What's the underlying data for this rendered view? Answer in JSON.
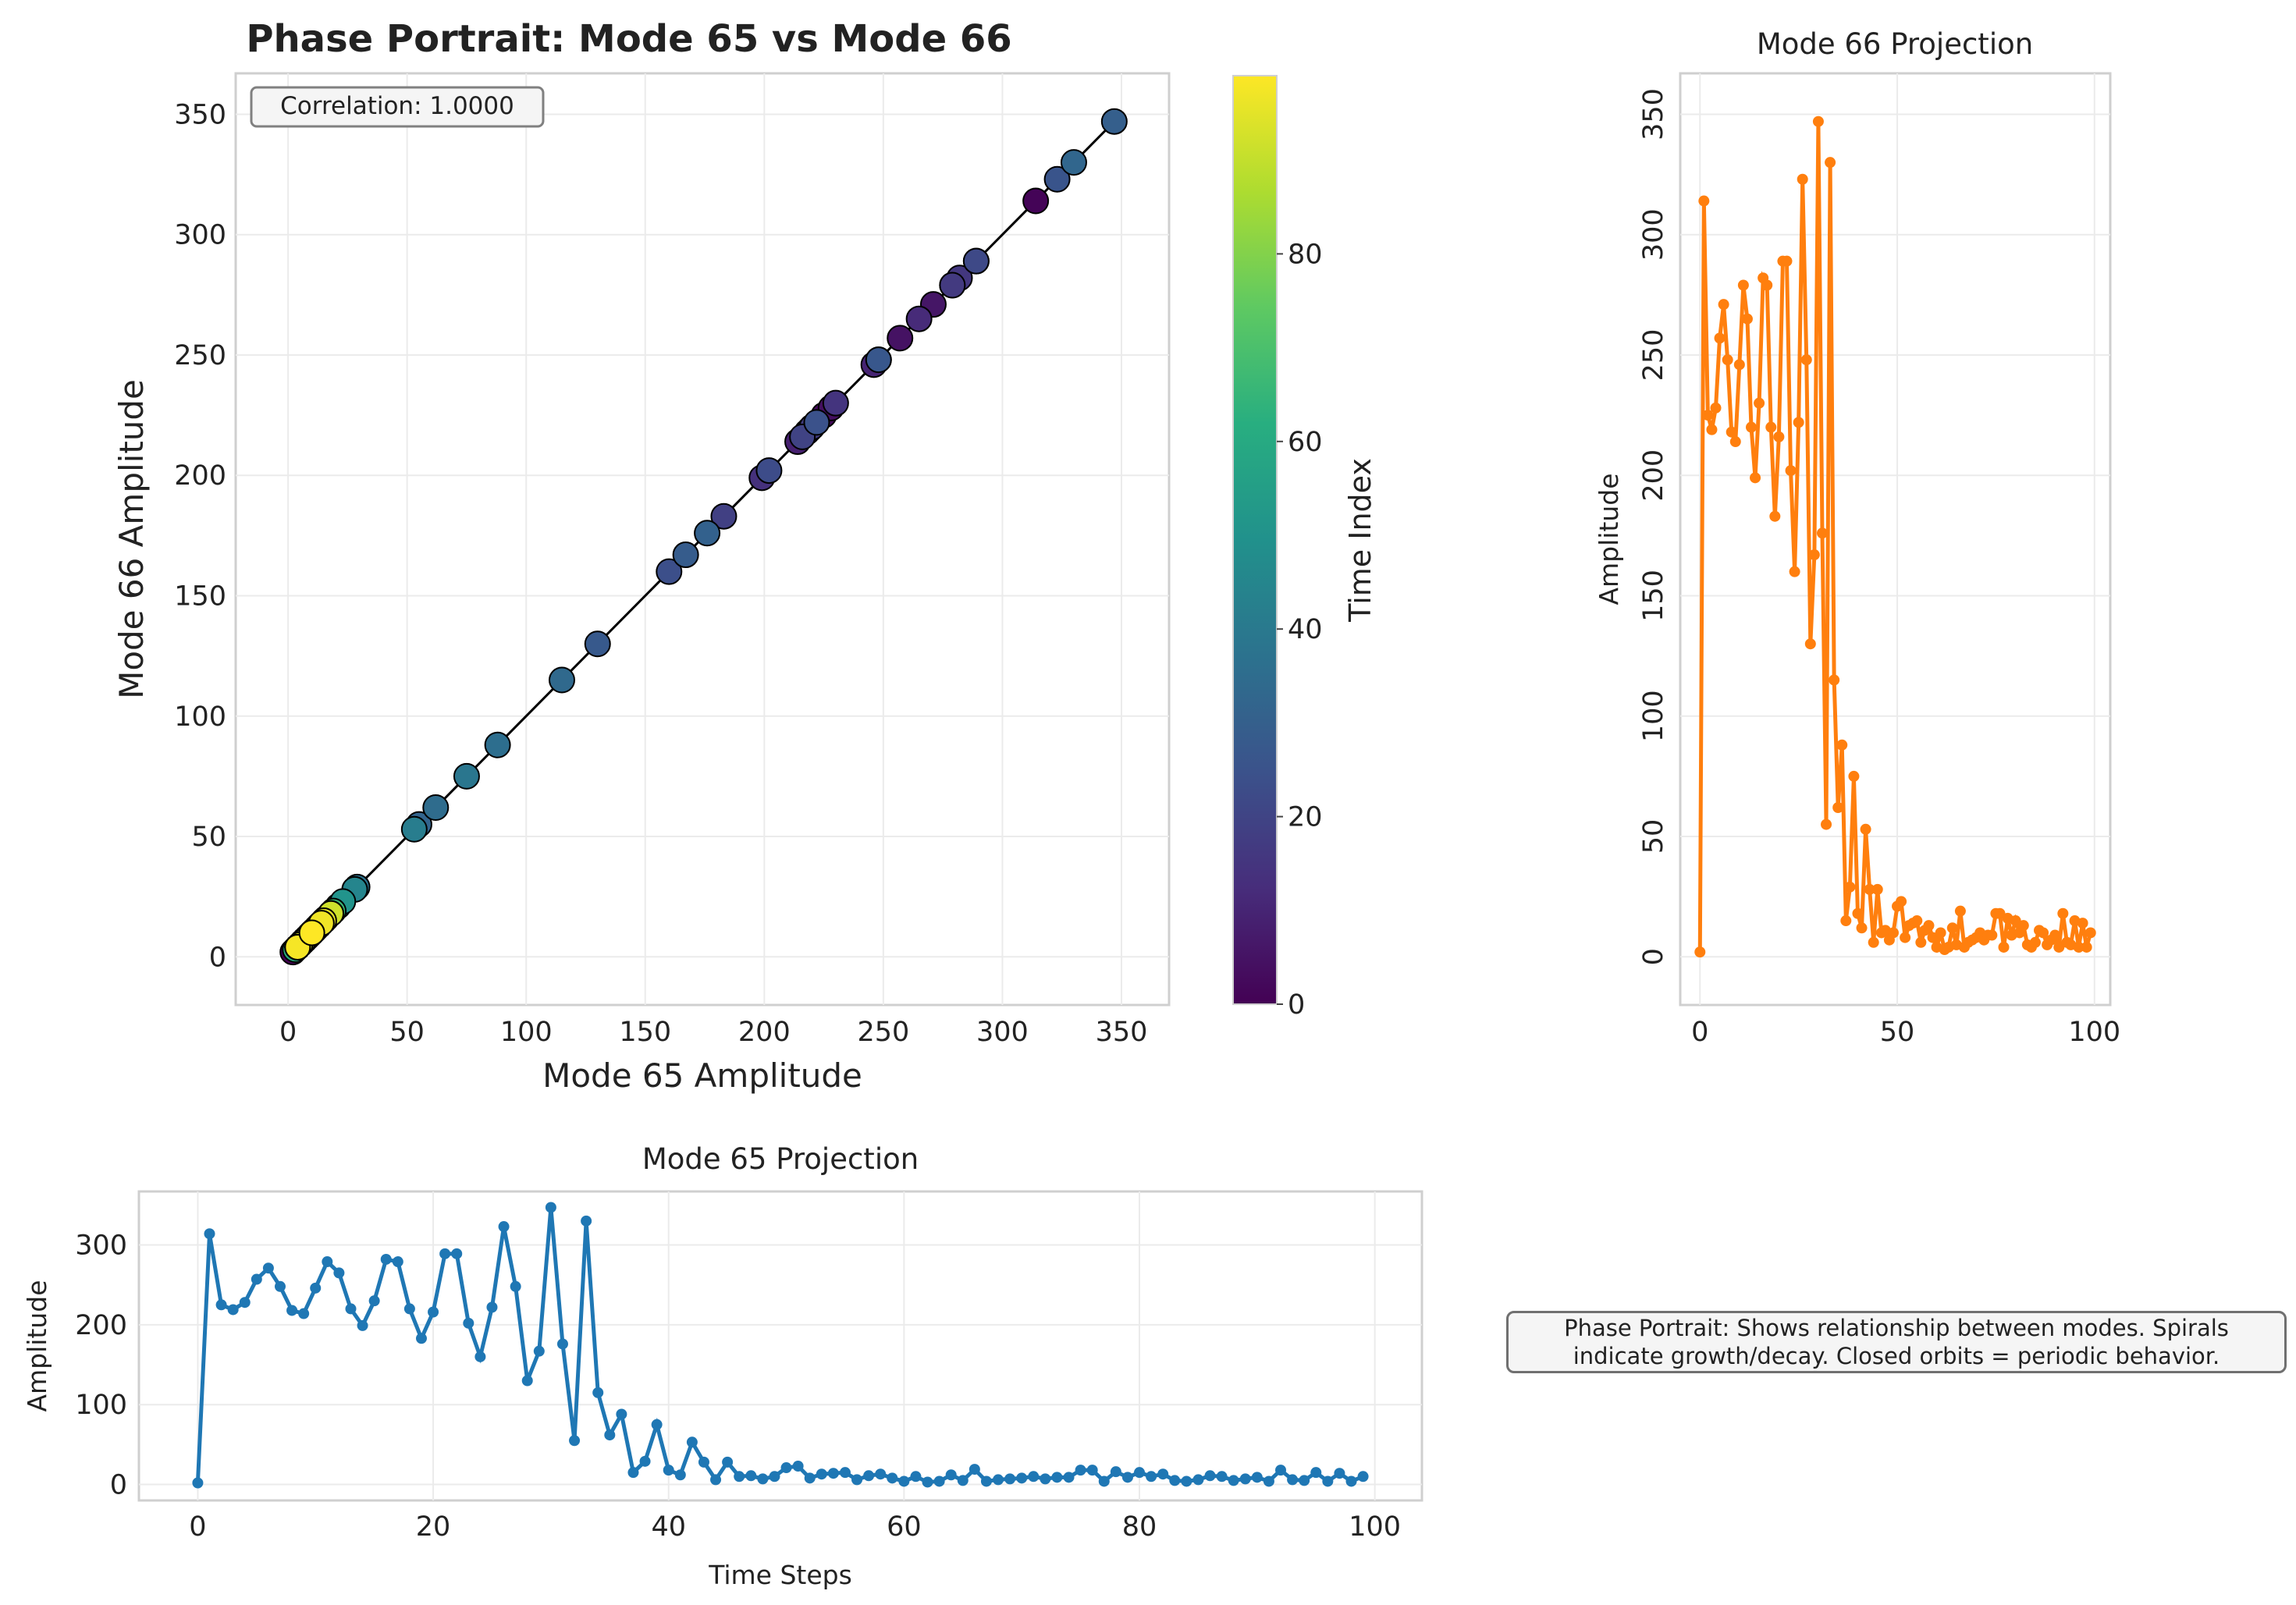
{
  "chart_data": [
    {
      "type": "scatter",
      "title": "Phase Portrait: Mode 65 vs Mode 66",
      "xlabel": "Mode 65 Amplitude",
      "ylabel": "Mode 66 Amplitude",
      "xlim": [
        -22,
        370
      ],
      "ylim": [
        -20,
        367
      ],
      "xticks": [
        0,
        50,
        100,
        150,
        200,
        250,
        300,
        350
      ],
      "yticks": [
        0,
        50,
        100,
        150,
        200,
        250,
        300,
        350
      ],
      "annotation": "Correlation: 1.0000",
      "colorbar": {
        "label": "Time Index",
        "ticks": [
          0,
          20,
          40,
          60,
          80
        ],
        "range": [
          0,
          99
        ],
        "colormap": "viridis"
      },
      "grid": true
    },
    {
      "type": "line",
      "title": "Mode 66 Projection",
      "ylabel": "Amplitude",
      "xlim": [
        -5,
        104
      ],
      "ylim": [
        -20,
        367
      ],
      "xticks": [
        0,
        50,
        100
      ],
      "yticks": [
        0,
        50,
        100,
        150,
        200,
        250,
        300,
        350
      ],
      "color": "#ff7f0e",
      "grid": true
    },
    {
      "type": "line",
      "title": "Mode 65 Projection",
      "xlabel": "Time Steps",
      "ylabel": "Amplitude",
      "xlim": [
        -5,
        104
      ],
      "ylim": [
        -20,
        367
      ],
      "xticks": [
        0,
        20,
        40,
        60,
        80,
        100
      ],
      "yticks": [
        0,
        100,
        200,
        300
      ],
      "color": "#1f77b4",
      "grid": true
    }
  ],
  "series_values": [
    2,
    314,
    225,
    219,
    228,
    257,
    271,
    248,
    218,
    214,
    246,
    279,
    265,
    220,
    199,
    230,
    282,
    279,
    220,
    183,
    216,
    289,
    289,
    202,
    160,
    222,
    323,
    248,
    130,
    167,
    347,
    176,
    55,
    330,
    115,
    62,
    88,
    15,
    29,
    75,
    18,
    12,
    53,
    28,
    6,
    28,
    10,
    11,
    7,
    10,
    21,
    23,
    8,
    13,
    14,
    15,
    6,
    11,
    13,
    8,
    4,
    10,
    3,
    4,
    12,
    5,
    19,
    4,
    6,
    7,
    8,
    10,
    7,
    9,
    9,
    18,
    18,
    4,
    16,
    9,
    15,
    10,
    13,
    5,
    4,
    6,
    11,
    10,
    5,
    7,
    9,
    4,
    18,
    6,
    5,
    15,
    4,
    14,
    4,
    10
  ],
  "annotation_box": {
    "line1": "Phase Portrait: Shows relationship between modes. Spirals",
    "line2": "indicate growth/decay. Closed orbits = periodic behavior."
  }
}
